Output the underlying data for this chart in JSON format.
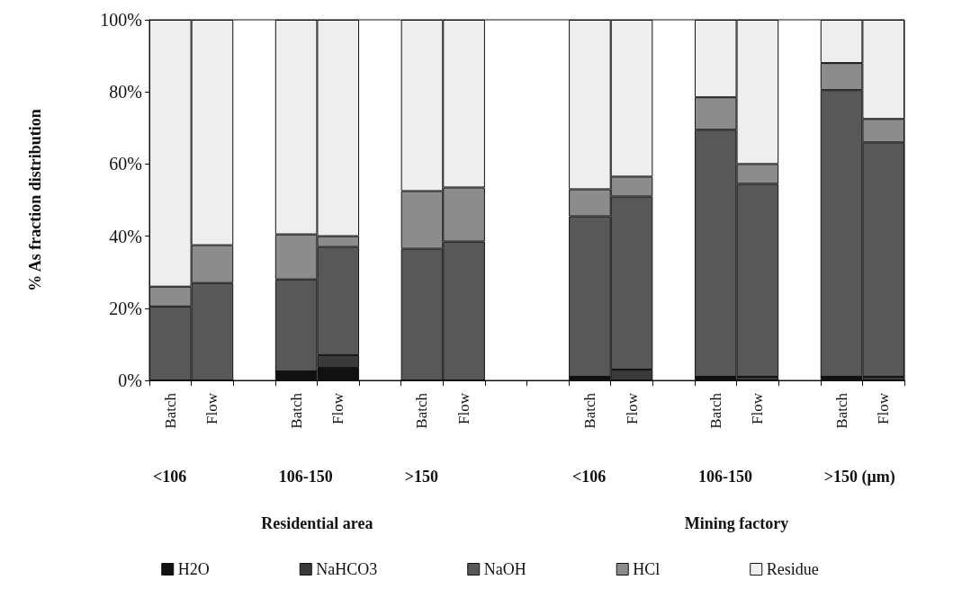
{
  "chart_data": {
    "type": "bar",
    "stacked": true,
    "ylabel": "% As fraction distribution",
    "categories": [
      "Batch",
      "Flow",
      null,
      "Batch",
      "Flow",
      null,
      "Batch",
      "Flow",
      null,
      null,
      "Batch",
      "Flow",
      null,
      "Batch",
      "Flow",
      null,
      "Batch",
      "Flow"
    ],
    "series": [
      {
        "name": "H2O",
        "color": "#111111",
        "values": [
          0,
          0,
          null,
          2.5,
          3.5,
          null,
          0,
          0,
          null,
          null,
          1,
          0,
          null,
          1,
          0,
          null,
          1,
          0
        ]
      },
      {
        "name": "NaHCO3",
        "color": "#3a3a3a",
        "values": [
          0,
          0,
          null,
          0,
          3.5,
          null,
          0,
          0,
          null,
          null,
          0,
          3,
          null,
          0,
          1,
          null,
          0,
          1
        ]
      },
      {
        "name": "NaOH",
        "color": "#585858",
        "values": [
          20.5,
          27,
          null,
          25.5,
          30,
          null,
          36.5,
          38.5,
          null,
          null,
          44.5,
          48,
          null,
          68.5,
          53.5,
          null,
          79.5,
          65
        ]
      },
      {
        "name": "HCl",
        "color": "#8c8c8c",
        "values": [
          5.5,
          10.5,
          null,
          12.5,
          3,
          null,
          16,
          15,
          null,
          null,
          7.5,
          5.5,
          null,
          9,
          5.5,
          null,
          7.5,
          6.5
        ]
      },
      {
        "name": "Residue",
        "color": "#eeeeee",
        "values": [
          74,
          62.5,
          null,
          59.5,
          60,
          null,
          47.5,
          46.5,
          null,
          null,
          47,
          43.5,
          null,
          21.5,
          40,
          null,
          12,
          27.5
        ]
      }
    ],
    "ylim": [
      0,
      100
    ],
    "yticks": [
      {
        "value": 0,
        "label": "0%"
      },
      {
        "value": 20,
        "label": "20%"
      },
      {
        "value": 40,
        "label": "40%"
      },
      {
        "value": 60,
        "label": "60%"
      },
      {
        "value": 80,
        "label": "80%"
      },
      {
        "value": 100,
        "label": "100%"
      }
    ],
    "grid": false,
    "legend": "bottom",
    "annotations": [
      "<106",
      "106-150",
      ">150",
      "<106",
      "106-150",
      ">150 (μm)",
      "Residential area",
      "Mining factory"
    ]
  }
}
